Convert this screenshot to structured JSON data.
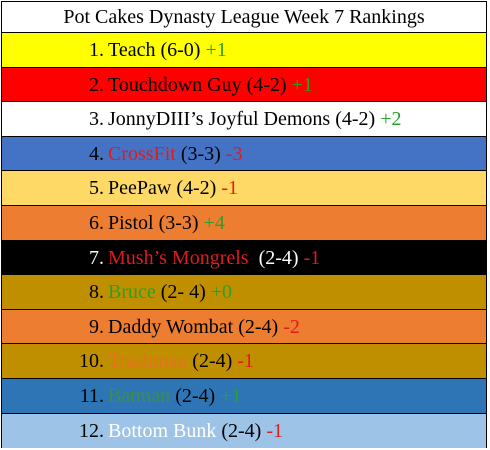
{
  "title": "Pot Cakes Dynasty League Week 7 Rankings",
  "colors": {
    "green": "#2aa02a",
    "red": "#e11b1b",
    "black": "#000000",
    "white": "#ffffff"
  },
  "rows": [
    {
      "num": "1.",
      "name": "Teach",
      "record": " (6-0) ",
      "change": "+1",
      "bg": "#ffff00",
      "name_color": "#000000",
      "record_color": "#000000",
      "change_color": "#2aa02a"
    },
    {
      "num": "2.",
      "name": "Touchdown Guy",
      "record": " (4-2) ",
      "change": "+1",
      "bg": "#ff0000",
      "name_color": "#000000",
      "record_color": "#000000",
      "change_color": "#2aa02a"
    },
    {
      "num": "3.",
      "name": "JonnyDIII’s Joyful Demons",
      "record": " (4-2) ",
      "change": "+2",
      "bg": "#ffffff",
      "name_color": "#000000",
      "record_color": "#000000",
      "change_color": "#2aa02a"
    },
    {
      "num": "4.",
      "name": "CrossFit",
      "record": " (3-3) ",
      "change": "-3",
      "bg": "#4472c4",
      "name_color": "#e11b1b",
      "record_color": "#000000",
      "change_color": "#e11b1b"
    },
    {
      "num": "5.",
      "name": "PeePaw",
      "record": " (4-2) ",
      "change": "-1",
      "bg": "#ffd966",
      "name_color": "#000000",
      "record_color": "#000000",
      "change_color": "#e11b1b"
    },
    {
      "num": "6.",
      "name": "Pistol",
      "record": " (3-3) ",
      "change": "+4",
      "bg": "#ed7d31",
      "name_color": "#000000",
      "record_color": "#000000",
      "change_color": "#2aa02a"
    },
    {
      "num": "7.",
      "name": "Mush’s Mongrels",
      "record": "  (2-4) ",
      "change": "-1",
      "bg": "#000000",
      "name_color": "#e11b1b",
      "record_color": "#ffffff",
      "change_color": "#e11b1b"
    },
    {
      "num": "8.",
      "name": "Bruce",
      "record": " (2- 4) ",
      "change": "+0",
      "bg": "#bf8f00",
      "name_color": "#2aa02a",
      "record_color": "#000000",
      "change_color": "#2aa02a"
    },
    {
      "num": "9.",
      "name": "Daddy Wombat",
      "record": " (2-4) ",
      "change": "-2",
      "bg": "#ed7d31",
      "name_color": "#000000",
      "record_color": "#000000",
      "change_color": "#e11b1b"
    },
    {
      "num": "10.",
      "name": "Trashman",
      "record": " (2-4) ",
      "change": "-1",
      "bg": "#bf8f00",
      "name_color": "#e2731f",
      "record_color": "#000000",
      "change_color": "#e11b1b"
    },
    {
      "num": "11.",
      "name": "Batman",
      "record": " (2-4) ",
      "change": "+1",
      "bg": "#2e75b6",
      "name_color": "#3f8f3f",
      "record_color": "#000000",
      "change_color": "#2aa02a"
    },
    {
      "num": "12.",
      "name": "Bottom Bunk",
      "record": " (2-4) ",
      "change": "-1",
      "bg": "#9dc3e6",
      "name_color": "#ffffff",
      "record_color": "#000000",
      "change_color": "#e11b1b"
    }
  ]
}
